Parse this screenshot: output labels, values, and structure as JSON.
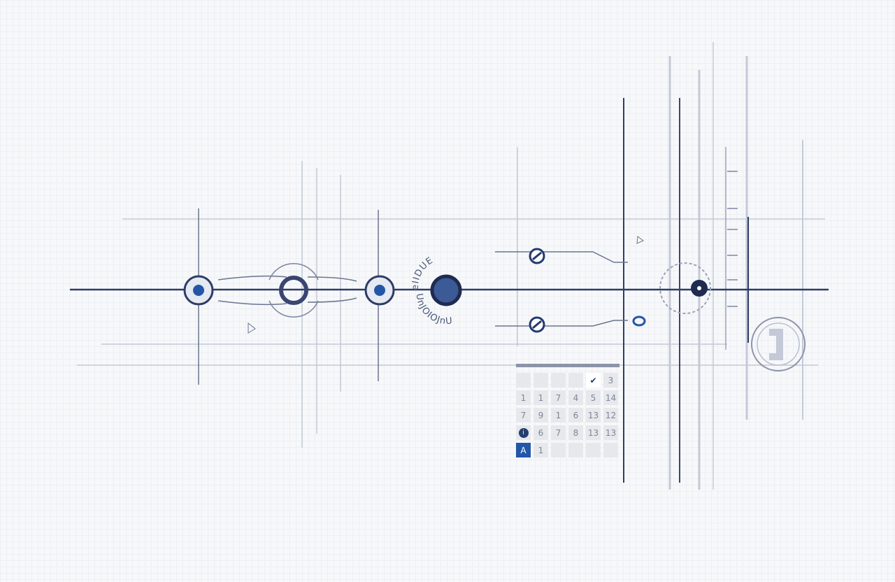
{
  "colors": {
    "line": "#2e3d66",
    "accent": "#2456a8",
    "faint": "#b9c0d0"
  },
  "ring_labels": {
    "top": "eIIDUE",
    "bottom": "UnJOIOJnU"
  },
  "calendar": {
    "rows": [
      [
        "",
        "",
        "",
        "",
        "check-icon",
        "3"
      ],
      [
        "1",
        "1",
        "7",
        "4",
        "5",
        "14"
      ],
      [
        "7",
        "9",
        "1",
        "6",
        "13",
        "12"
      ],
      [
        "info-icon",
        "6",
        "7",
        "8",
        "13",
        "13"
      ],
      [
        "A",
        "1",
        "",
        "",
        "",
        ""
      ]
    ]
  }
}
